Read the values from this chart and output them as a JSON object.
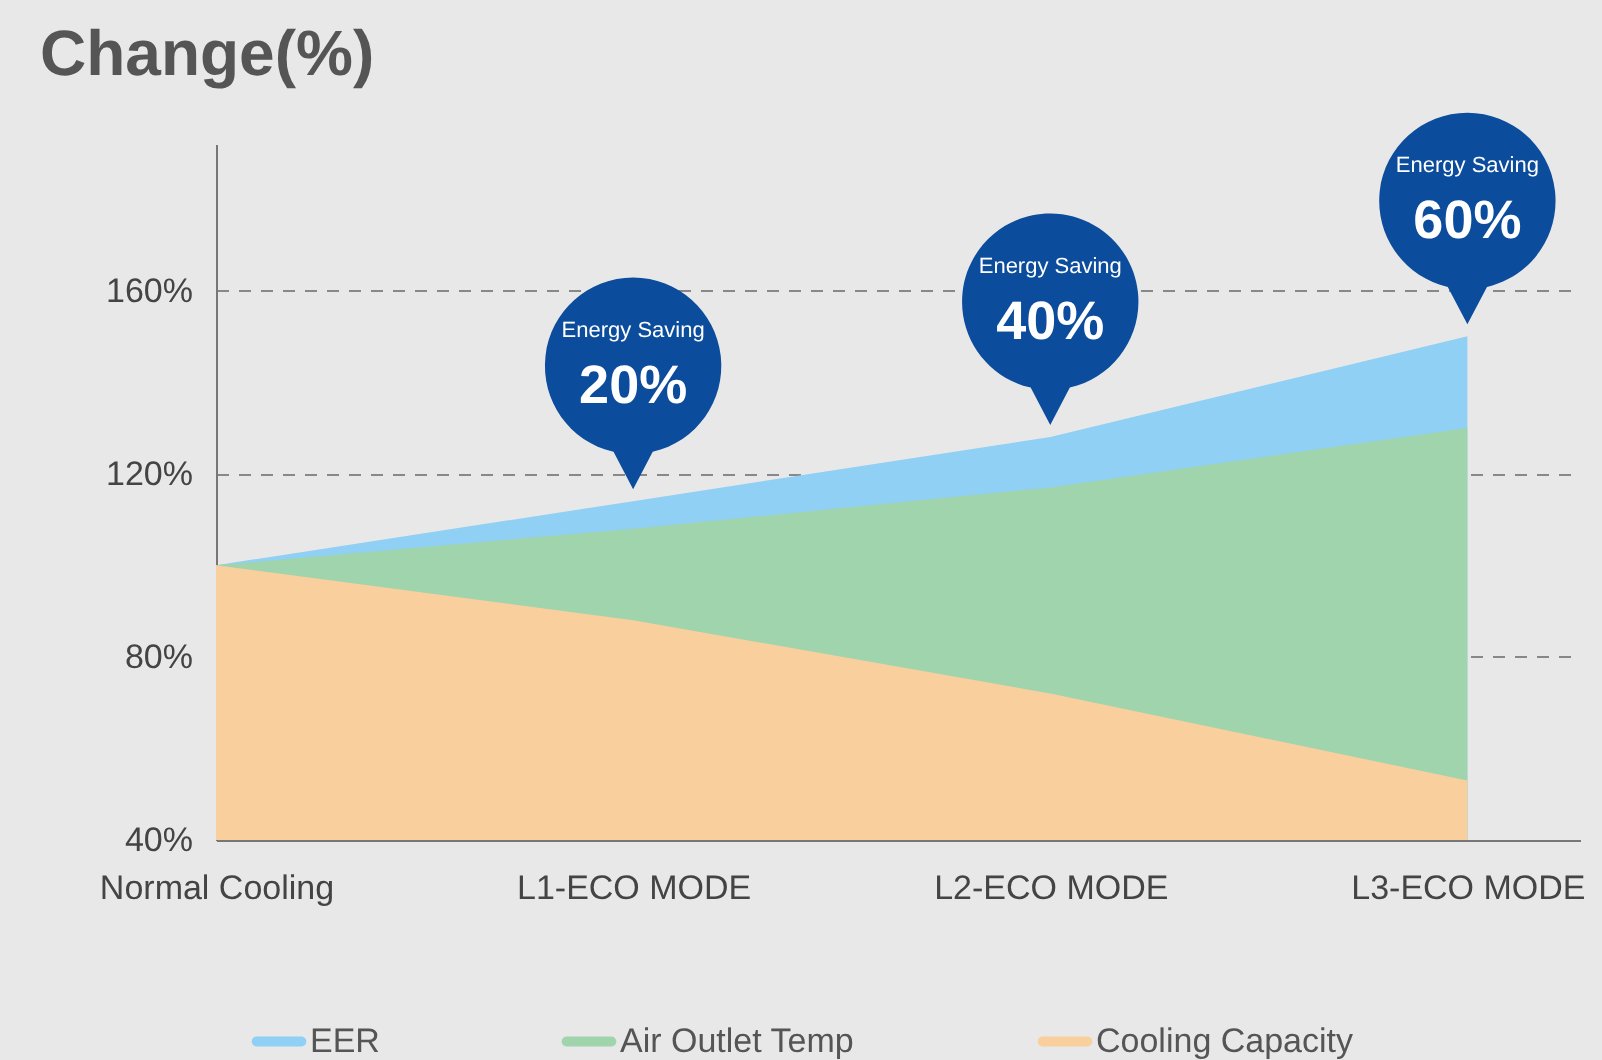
{
  "chart_data": {
    "type": "area",
    "title": "Change(%)",
    "categories": [
      "Normal Cooling",
      "L1-ECO MODE",
      "L2-ECO MODE",
      "L3-ECO MODE"
    ],
    "series": [
      {
        "name": "EER",
        "color": "#8fd0f4",
        "values": [
          100,
          114,
          128,
          150
        ]
      },
      {
        "name": "Air Outlet Temp",
        "color": "#9fd4ad",
        "values": [
          100,
          108,
          117,
          130
        ]
      },
      {
        "name": "Cooling Capacity",
        "color": "#f9cf9e",
        "values": [
          100,
          88,
          72,
          53
        ]
      }
    ],
    "ylim": [
      40,
      192
    ],
    "yticks": [
      {
        "value": 40,
        "label": "40%"
      },
      {
        "value": 80,
        "label": "80%"
      },
      {
        "value": 120,
        "label": "120%"
      },
      {
        "value": 160,
        "label": "160%"
      }
    ],
    "grid": "y",
    "legend": "bottom",
    "annotations": [
      "Energy Saving 20%",
      "Energy Saving 40%",
      "Energy Saving 60%"
    ]
  }
}
